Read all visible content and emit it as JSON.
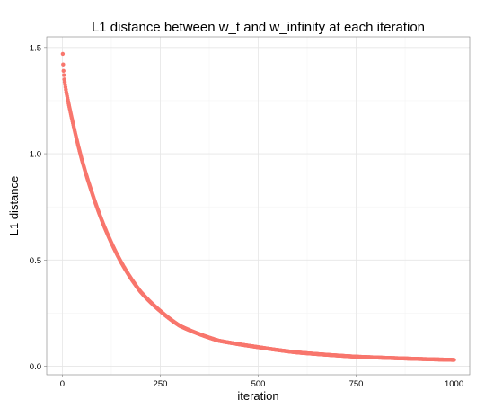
{
  "chart_data": {
    "type": "scatter",
    "title": "L1 distance between w_t and w_infinity at each iteration",
    "xlabel": "iteration",
    "ylabel": "L1 distance",
    "xlim": [
      -40,
      1040
    ],
    "ylim": [
      -0.04,
      1.55
    ],
    "x_ticks": [
      0,
      250,
      500,
      750,
      1000
    ],
    "x_tick_labels": [
      "0",
      "250",
      "500",
      "750",
      "1000"
    ],
    "y_ticks": [
      0.0,
      0.5,
      1.0,
      1.5
    ],
    "y_tick_labels": [
      "0.0",
      "0.5",
      "1.0",
      "1.5"
    ],
    "grid": true,
    "legend": "none",
    "point_color": "#F8766D",
    "curve": {
      "description": "smooth decay sampled at every iteration",
      "x_start": 1,
      "x_end": 1000,
      "x_step": 1,
      "anchor_points": [
        {
          "x": 1,
          "y": 1.47
        },
        {
          "x": 2,
          "y": 1.42
        },
        {
          "x": 3,
          "y": 1.39
        },
        {
          "x": 4,
          "y": 1.37
        },
        {
          "x": 5,
          "y": 1.35
        },
        {
          "x": 10,
          "y": 1.29
        },
        {
          "x": 25,
          "y": 1.16
        },
        {
          "x": 50,
          "y": 0.97
        },
        {
          "x": 75,
          "y": 0.82
        },
        {
          "x": 100,
          "y": 0.69
        },
        {
          "x": 150,
          "y": 0.49
        },
        {
          "x": 200,
          "y": 0.35
        },
        {
          "x": 250,
          "y": 0.26
        },
        {
          "x": 300,
          "y": 0.19
        },
        {
          "x": 400,
          "y": 0.12
        },
        {
          "x": 500,
          "y": 0.09
        },
        {
          "x": 600,
          "y": 0.065
        },
        {
          "x": 750,
          "y": 0.045
        },
        {
          "x": 900,
          "y": 0.035
        },
        {
          "x": 1000,
          "y": 0.03
        }
      ]
    }
  }
}
